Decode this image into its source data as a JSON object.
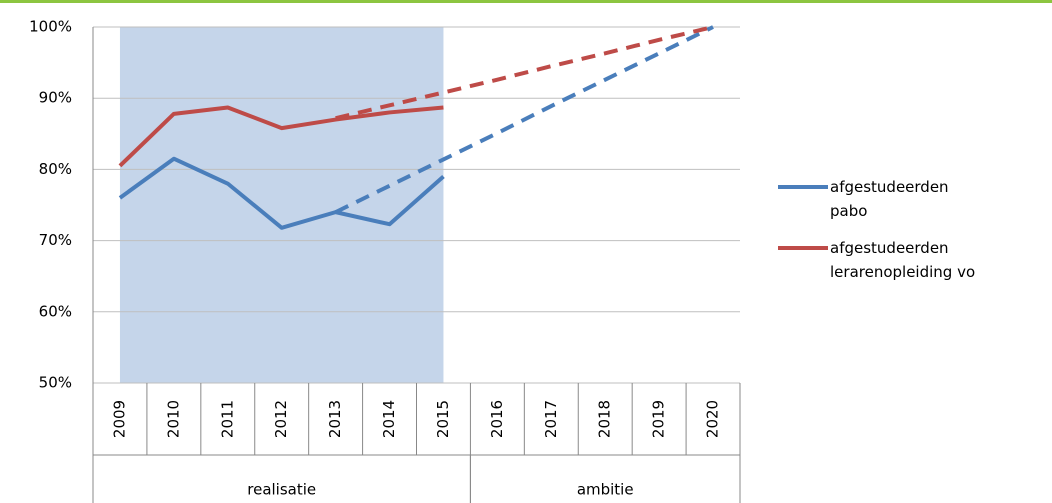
{
  "chart_data": {
    "type": "line",
    "categories": [
      "2009",
      "2010",
      "2011",
      "2012",
      "2013",
      "2014",
      "2015",
      "2016",
      "2017",
      "2018",
      "2019",
      "2020"
    ],
    "groups": [
      {
        "label": "realisatie",
        "from": "2009",
        "to": "2015",
        "shaded": true
      },
      {
        "label": "ambitie",
        "from": "2016",
        "to": "2020",
        "shaded": false
      }
    ],
    "series": [
      {
        "name": "afgestudeerden pabo",
        "color": "#4a7ebb",
        "values": [
          76,
          81.5,
          78,
          71.8,
          74,
          72.3,
          79,
          null,
          null,
          null,
          null,
          null
        ],
        "ambition": [
          null,
          null,
          null,
          null,
          74,
          77.7,
          81.4,
          85.1,
          88.9,
          92.6,
          96.3,
          100
        ]
      },
      {
        "name": "afgestudeerden lerarenopleiding vo",
        "color": "#be4b48",
        "values": [
          80.5,
          87.8,
          88.7,
          85.8,
          87,
          88,
          88.7,
          null,
          null,
          null,
          null,
          null
        ],
        "ambition": [
          null,
          null,
          null,
          null,
          87.2,
          89,
          90.8,
          92.6,
          94.5,
          96.3,
          98.2,
          100
        ]
      }
    ],
    "ylim": [
      50,
      100
    ],
    "yticks": [
      {
        "value": 50,
        "label": "50%"
      },
      {
        "value": 60,
        "label": "60%"
      },
      {
        "value": 70,
        "label": "70%"
      },
      {
        "value": 80,
        "label": "80%"
      },
      {
        "value": 90,
        "label": "90%"
      },
      {
        "value": 100,
        "label": "100%"
      }
    ],
    "grid": true,
    "legend": "right"
  }
}
